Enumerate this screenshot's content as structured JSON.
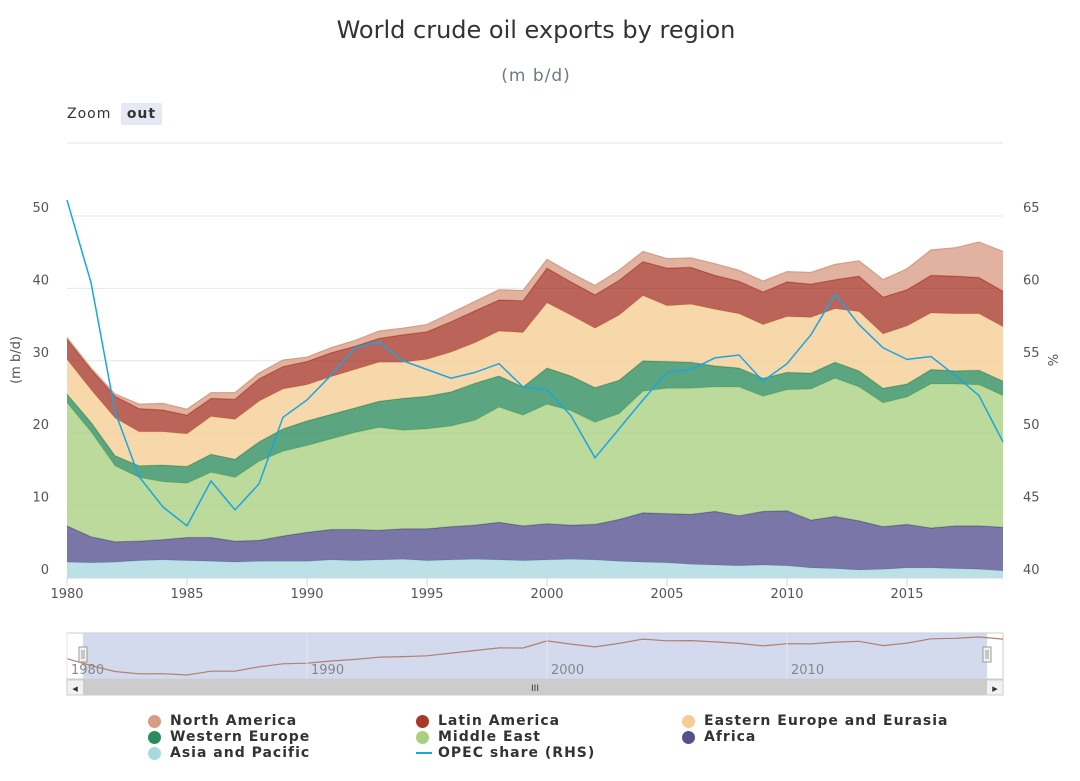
{
  "chart_data": {
    "type": "area",
    "stacked": true,
    "title": "World crude oil exports by region",
    "subtitle": "(m b/d)",
    "ylabel": "(m b/d)",
    "y2label": "%",
    "ylim": [
      0,
      50
    ],
    "y2lim": [
      40,
      65
    ],
    "yticks": [
      "0",
      "10",
      "20",
      "30",
      "40",
      "50"
    ],
    "y2ticks": [
      "40",
      "45",
      "50",
      "55",
      "60",
      "65"
    ],
    "xticks": [
      "1980",
      "1985",
      "1990",
      "1995",
      "2000",
      "2005",
      "2010",
      "2015"
    ],
    "navigator_ticks": [
      "1980",
      "1990",
      "2000",
      "2010"
    ],
    "x": [
      1980,
      1981,
      1982,
      1983,
      1984,
      1985,
      1986,
      1987,
      1988,
      1989,
      1990,
      1991,
      1992,
      1993,
      1994,
      1995,
      1996,
      1997,
      1998,
      1999,
      2000,
      2001,
      2002,
      2003,
      2004,
      2005,
      2006,
      2007,
      2008,
      2009,
      2010,
      2011,
      2012,
      2013,
      2014,
      2015,
      2016,
      2017,
      2018,
      2019
    ],
    "series": [
      {
        "name": "Asia and Pacific",
        "color": "#a8d8e0",
        "values": [
          2.2,
          2.1,
          2.2,
          2.4,
          2.5,
          2.4,
          2.3,
          2.2,
          2.3,
          2.3,
          2.3,
          2.5,
          2.4,
          2.5,
          2.6,
          2.4,
          2.5,
          2.6,
          2.5,
          2.4,
          2.5,
          2.6,
          2.5,
          2.3,
          2.2,
          2.1,
          1.9,
          1.8,
          1.7,
          1.8,
          1.7,
          1.4,
          1.3,
          1.1,
          1.2,
          1.4,
          1.4,
          1.3,
          1.2,
          1.0
        ]
      },
      {
        "name": "Africa",
        "color": "#554f8e",
        "values": [
          5.0,
          3.6,
          2.8,
          2.7,
          2.8,
          3.2,
          3.3,
          2.9,
          2.9,
          3.5,
          4.0,
          4.2,
          4.3,
          4.1,
          4.2,
          4.4,
          4.6,
          4.7,
          5.2,
          4.8,
          5.0,
          4.7,
          4.9,
          5.8,
          6.8,
          6.8,
          6.9,
          7.4,
          6.9,
          7.4,
          7.6,
          6.6,
          7.2,
          6.8,
          5.9,
          6.0,
          5.5,
          5.9,
          6.0,
          6.0
        ]
      },
      {
        "name": "Middle East",
        "color": "#a8d080",
        "values": [
          17.0,
          14.5,
          10.5,
          8.8,
          8.0,
          7.5,
          9.0,
          8.8,
          10.9,
          11.7,
          12.0,
          12.5,
          13.4,
          14.2,
          13.6,
          13.8,
          13.9,
          14.5,
          15.9,
          15.3,
          16.5,
          15.8,
          14.1,
          14.6,
          16.8,
          17.3,
          17.4,
          17.2,
          17.8,
          15.9,
          16.7,
          18.1,
          19.1,
          18.5,
          17.1,
          17.6,
          19.9,
          19.6,
          19.5,
          18.2
        ]
      },
      {
        "name": "Western Europe",
        "color": "#2d8c5e",
        "values": [
          1.2,
          1.3,
          1.4,
          1.6,
          2.3,
          2.3,
          2.5,
          2.5,
          2.7,
          3.1,
          3.4,
          3.4,
          3.4,
          3.6,
          4.4,
          4.5,
          4.7,
          5.1,
          4.3,
          3.9,
          5.0,
          4.8,
          4.8,
          4.6,
          4.2,
          3.7,
          3.6,
          2.9,
          2.6,
          2.5,
          2.4,
          2.2,
          2.2,
          2.2,
          2.0,
          1.8,
          2.0,
          1.8,
          2.0,
          2.0
        ]
      },
      {
        "name": "Eastern Europe and Eurasia",
        "color": "#f5cd93",
        "values": [
          4.8,
          4.5,
          5.2,
          4.7,
          4.6,
          4.5,
          5.2,
          5.5,
          5.6,
          5.5,
          5.0,
          5.2,
          5.3,
          5.4,
          5.0,
          5.1,
          5.5,
          5.6,
          6.2,
          7.5,
          9.0,
          8.4,
          8.2,
          9.0,
          9.0,
          7.7,
          8.0,
          7.8,
          7.5,
          7.4,
          7.7,
          7.7,
          7.4,
          8.2,
          7.5,
          8.0,
          7.8,
          7.9,
          7.8,
          7.5
        ]
      },
      {
        "name": "Latin America",
        "color": "#a8382a",
        "values": [
          2.8,
          2.8,
          3.0,
          3.2,
          3.0,
          2.6,
          2.5,
          2.8,
          3.1,
          3.1,
          3.2,
          3.3,
          3.2,
          3.3,
          3.8,
          3.8,
          4.2,
          4.4,
          4.3,
          4.4,
          4.8,
          4.6,
          4.6,
          4.8,
          4.7,
          5.2,
          5.1,
          4.7,
          4.5,
          4.5,
          4.8,
          4.6,
          4.0,
          4.9,
          5.1,
          5.0,
          5.2,
          5.2,
          5.0,
          4.9
        ]
      },
      {
        "name": "North America",
        "color": "#d79c84",
        "values": [
          0.2,
          0.2,
          0.3,
          0.6,
          0.9,
          0.8,
          0.8,
          0.9,
          0.8,
          0.9,
          0.6,
          0.7,
          0.8,
          1.0,
          0.9,
          1.0,
          1.2,
          1.3,
          1.4,
          1.4,
          1.2,
          1.2,
          1.3,
          1.4,
          1.4,
          1.3,
          1.3,
          1.6,
          1.5,
          1.5,
          1.4,
          1.6,
          2.1,
          2.1,
          2.4,
          2.9,
          3.5,
          3.9,
          4.9,
          5.5
        ]
      }
    ],
    "line": {
      "name": "OPEC share (RHS)",
      "color": "#1aa6e0",
      "axis": "right",
      "values": [
        66.1,
        60.4,
        51.5,
        47.0,
        44.9,
        43.6,
        46.7,
        44.7,
        46.5,
        51.1,
        52.3,
        54.0,
        55.9,
        56.3,
        55.0,
        54.4,
        53.8,
        54.2,
        54.8,
        53.2,
        53.0,
        51.2,
        48.3,
        50.3,
        52.3,
        54.2,
        54.4,
        55.2,
        55.4,
        53.6,
        54.8,
        56.8,
        59.6,
        57.5,
        55.9,
        55.1,
        55.3,
        54.0,
        52.6,
        49.4
      ]
    },
    "legend": {
      "placement": "bottom",
      "items": [
        {
          "label": "North America",
          "color": "#d79c84",
          "marker": "circle"
        },
        {
          "label": "Latin America",
          "color": "#a8382a",
          "marker": "circle"
        },
        {
          "label": "Eastern Europe and Eurasia",
          "color": "#f5cd93",
          "marker": "circle"
        },
        {
          "label": "Western Europe",
          "color": "#2d8c5e",
          "marker": "circle"
        },
        {
          "label": "Middle East",
          "color": "#a8d080",
          "marker": "circle"
        },
        {
          "label": "Africa",
          "color": "#554f8e",
          "marker": "circle"
        },
        {
          "label": "Asia and Pacific",
          "color": "#a8d8e0",
          "marker": "circle"
        },
        {
          "label": "OPEC share (RHS)",
          "color": "#1aa6e0",
          "marker": "line"
        }
      ]
    }
  },
  "zoom": {
    "label": "Zoom",
    "button": "out"
  },
  "scrollbar": {
    "grip": "III",
    "left_arrow": "◂",
    "right_arrow": "▸"
  }
}
